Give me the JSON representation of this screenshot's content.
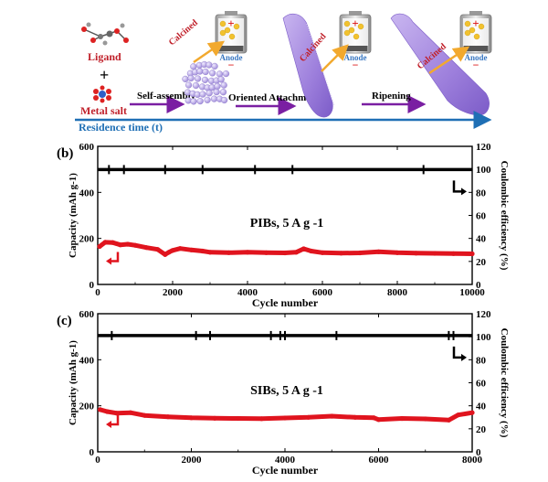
{
  "scheme": {
    "ligand_label": "Ligand",
    "plus": "+",
    "metal_salt_label": "Metal salt",
    "self_assembly": "Self-assembly",
    "oriented_attachment": "Oriented Attachment",
    "ripening": "Ripening",
    "residence_time": "Residence time (t)",
    "calcined": "Calcined",
    "anode": "Anode",
    "battery_plus": "+",
    "battery_minus": "−",
    "colors": {
      "arrow_purple": "#7a1fa2",
      "residence_blue": "#1f6fb5",
      "label_red": "#c0202a",
      "anode_blue": "#3a78c2",
      "sheet_purple": "#a98be0",
      "sphere_purple": "#b9a8e6",
      "electrode_yellow": "#f2c22e"
    }
  },
  "chart_data": [
    {
      "type": "line",
      "panel_label": "(b)",
      "annotation": "PIBs, 5 A g -1",
      "xlabel": "Cycle number",
      "ylabel_left": "Capacity (mAh g-1)",
      "ylabel_right": "Coulombic efficiency (%)",
      "xlim": [
        0,
        10000
      ],
      "xticks": [
        "0",
        "2000",
        "4000",
        "6000",
        "8000",
        "10000"
      ],
      "ylim_left": [
        0,
        600
      ],
      "yticks_left": [
        "0",
        "200",
        "400",
        "600"
      ],
      "ylim_right": [
        0,
        120
      ],
      "yticks_right": [
        "0",
        "20",
        "40",
        "60",
        "80",
        "100",
        "120"
      ],
      "series": [
        {
          "role": "capacity",
          "axis": "left",
          "color": "#e0141e",
          "x": [
            50,
            200,
            400,
            600,
            800,
            1000,
            1300,
            1600,
            1800,
            1900,
            2000,
            2200,
            2500,
            2800,
            3000,
            3500,
            4000,
            4500,
            5000,
            5300,
            5500,
            5700,
            6000,
            6500,
            7000,
            7500,
            8000,
            8500,
            9000,
            9500,
            10000
          ],
          "y": [
            165,
            183,
            182,
            172,
            175,
            170,
            160,
            152,
            130,
            140,
            148,
            156,
            150,
            145,
            140,
            138,
            140,
            138,
            137,
            140,
            155,
            145,
            138,
            136,
            137,
            142,
            138,
            136,
            135,
            134,
            133
          ]
        },
        {
          "role": "coulombic_efficiency",
          "axis": "right",
          "color": "#000000",
          "x": [
            0,
            10000
          ],
          "y": [
            99.8,
            99.8
          ],
          "spike_x": [
            300,
            700,
            1800,
            2800,
            4200,
            5200,
            8700
          ]
        }
      ],
      "arrows": {
        "capacity": "left",
        "efficiency": "right"
      }
    },
    {
      "type": "line",
      "panel_label": "(c)",
      "annotation": "SIBs, 5 A g -1",
      "xlabel": "Cycle number",
      "ylabel_left": "Capacity (mAh g-1)",
      "ylabel_right": "Coulombic efficiency (%)",
      "xlim": [
        0,
        8000
      ],
      "xticks": [
        "0",
        "2000",
        "4000",
        "6000",
        "8000"
      ],
      "ylim_left": [
        0,
        600
      ],
      "yticks_left": [
        "0",
        "200",
        "400",
        "600"
      ],
      "ylim_right": [
        0,
        120
      ],
      "yticks_right": [
        "0",
        "20",
        "40",
        "60",
        "80",
        "100",
        "120"
      ],
      "series": [
        {
          "role": "capacity",
          "axis": "left",
          "color": "#e0141e",
          "x": [
            50,
            200,
            400,
            700,
            1000,
            1500,
            2000,
            2500,
            3000,
            3500,
            4000,
            4500,
            5000,
            5500,
            5900,
            6000,
            6500,
            7000,
            7500,
            7700,
            8000
          ],
          "y": [
            183,
            175,
            168,
            170,
            158,
            152,
            148,
            146,
            145,
            144,
            147,
            150,
            155,
            150,
            148,
            140,
            145,
            143,
            138,
            160,
            170
          ]
        },
        {
          "role": "coulombic_efficiency",
          "axis": "right",
          "color": "#000000",
          "x": [
            0,
            8000
          ],
          "y": [
            101,
            101
          ],
          "spike_x": [
            300,
            2100,
            2400,
            3700,
            3900,
            4000,
            5100,
            7500,
            7600
          ]
        }
      ],
      "arrows": {
        "capacity": "left",
        "efficiency": "right"
      }
    }
  ]
}
